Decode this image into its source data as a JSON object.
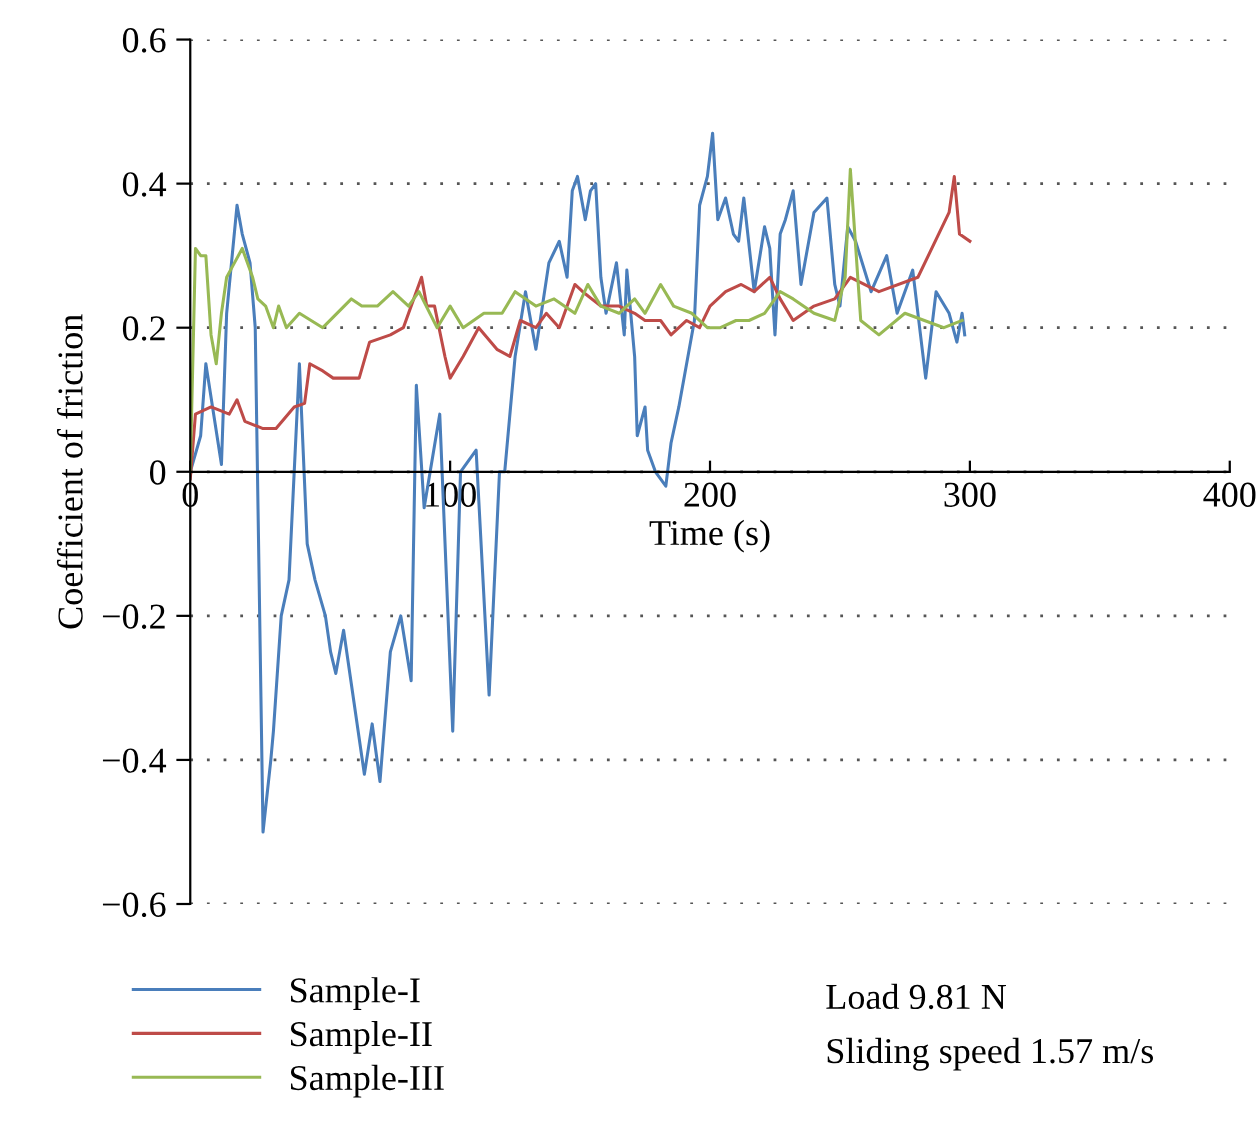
{
  "chart_data": {
    "type": "line",
    "xlabel": "Time (s)",
    "ylabel": "Coefficient of friction",
    "xlim": [
      0,
      400
    ],
    "xticks": [
      0,
      100,
      200,
      300,
      400
    ],
    "ylim": [
      -0.6,
      0.6
    ],
    "yticks": [
      {
        "value": -0.6,
        "label": "−0.6"
      },
      {
        "value": -0.4,
        "label": "−0.4"
      },
      {
        "value": -0.2,
        "label": "−0.2"
      },
      0,
      0.2,
      0.4,
      0.6
    ],
    "grid": "y",
    "legend": "bottom left",
    "marker": "none",
    "line_style": "solid",
    "annotations": [
      "Load 9.81 N",
      "Sliding speed 1.57 m/s"
    ],
    "series": [
      {
        "name": "Sample-I",
        "color": "#4a7ebb",
        "x": [
          0,
          4,
          6,
          12,
          14,
          18,
          20,
          23,
          25,
          28,
          31,
          32,
          35,
          38,
          42,
          45,
          48,
          52,
          54,
          56,
          59,
          63,
          67,
          70,
          73,
          77,
          81,
          85,
          87,
          90,
          96,
          101,
          104,
          110,
          115,
          119,
          121,
          125,
          129,
          133,
          138,
          142,
          145,
          147,
          149,
          152,
          154,
          156,
          158,
          160,
          164,
          167,
          168,
          171,
          172,
          175,
          176,
          179,
          183,
          185,
          188,
          194,
          196,
          199,
          201,
          203,
          206,
          209,
          211,
          213,
          217,
          221,
          223,
          225,
          227,
          229,
          232,
          235,
          240,
          245,
          248,
          250,
          253,
          256,
          262,
          268,
          272,
          278,
          283,
          287,
          292,
          295,
          297,
          298
        ],
        "values": [
          0,
          0.05,
          0.15,
          0.01,
          0.22,
          0.37,
          0.33,
          0.29,
          0.2,
          -0.5,
          -0.4,
          -0.36,
          -0.2,
          -0.15,
          0.15,
          -0.1,
          -0.15,
          -0.2,
          -0.25,
          -0.28,
          -0.22,
          -0.32,
          -0.42,
          -0.35,
          -0.43,
          -0.25,
          -0.2,
          -0.29,
          0.12,
          -0.05,
          0.08,
          -0.36,
          0,
          0.03,
          -0.31,
          0,
          0,
          0.16,
          0.25,
          0.17,
          0.29,
          0.32,
          0.27,
          0.39,
          0.41,
          0.35,
          0.39,
          0.4,
          0.27,
          0.22,
          0.29,
          0.19,
          0.28,
          0.16,
          0.05,
          0.09,
          0.03,
          0,
          -0.02,
          0.04,
          0.09,
          0.21,
          0.37,
          0.41,
          0.47,
          0.35,
          0.38,
          0.33,
          0.32,
          0.38,
          0.25,
          0.34,
          0.31,
          0.19,
          0.33,
          0.35,
          0.39,
          0.26,
          0.36,
          0.38,
          0.26,
          0.23,
          0.34,
          0.32,
          0.25,
          0.3,
          0.22,
          0.28,
          0.13,
          0.25,
          0.22,
          0.18,
          0.22,
          0.19
        ]
      },
      {
        "name": "Sample-II",
        "color": "#be4b48",
        "x": [
          0,
          2,
          8,
          15,
          18,
          21,
          28,
          33,
          40,
          44,
          46,
          51,
          55,
          59,
          65,
          69,
          77,
          82,
          86,
          89,
          91,
          94,
          98,
          100,
          105,
          111,
          118,
          123,
          127,
          133,
          137,
          142,
          148,
          151,
          158,
          165,
          171,
          175,
          181,
          185,
          191,
          196,
          200,
          206,
          212,
          217,
          223,
          227,
          232,
          240,
          248,
          254,
          265,
          280,
          292,
          294,
          296,
          300
        ],
        "values": [
          -0.01,
          0.08,
          0.09,
          0.08,
          0.1,
          0.07,
          0.06,
          0.06,
          0.09,
          0.095,
          0.15,
          0.14,
          0.13,
          0.13,
          0.13,
          0.18,
          0.19,
          0.2,
          0.24,
          0.27,
          0.23,
          0.23,
          0.16,
          0.13,
          0.16,
          0.2,
          0.17,
          0.16,
          0.21,
          0.2,
          0.22,
          0.2,
          0.26,
          0.25,
          0.23,
          0.23,
          0.22,
          0.21,
          0.21,
          0.19,
          0.21,
          0.2,
          0.23,
          0.25,
          0.26,
          0.25,
          0.27,
          0.24,
          0.21,
          0.23,
          0.24,
          0.27,
          0.25,
          0.27,
          0.36,
          0.41,
          0.33,
          0.32
        ]
      },
      {
        "name": "Sample-III",
        "color": "#98b954",
        "x": [
          0,
          2,
          4,
          6,
          8,
          10,
          12,
          14,
          17,
          20,
          24,
          26,
          29,
          32,
          34,
          37,
          42,
          51,
          62,
          66,
          72,
          78,
          84,
          88,
          95,
          100,
          105,
          113,
          120,
          125,
          133,
          140,
          148,
          153,
          158,
          165,
          171,
          175,
          181,
          186,
          193,
          199,
          204,
          210,
          215,
          221,
          227,
          232,
          240,
          248,
          252,
          254,
          258,
          265,
          275,
          290,
          297
        ],
        "values": [
          0,
          0.31,
          0.3,
          0.3,
          0.19,
          0.15,
          0.22,
          0.27,
          0.29,
          0.31,
          0.27,
          0.24,
          0.23,
          0.2,
          0.23,
          0.2,
          0.22,
          0.2,
          0.24,
          0.23,
          0.23,
          0.25,
          0.23,
          0.25,
          0.2,
          0.23,
          0.2,
          0.22,
          0.22,
          0.25,
          0.23,
          0.24,
          0.22,
          0.26,
          0.23,
          0.22,
          0.24,
          0.22,
          0.26,
          0.23,
          0.22,
          0.2,
          0.2,
          0.21,
          0.21,
          0.22,
          0.25,
          0.24,
          0.22,
          0.21,
          0.27,
          0.42,
          0.21,
          0.19,
          0.22,
          0.2,
          0.21
        ]
      }
    ]
  }
}
